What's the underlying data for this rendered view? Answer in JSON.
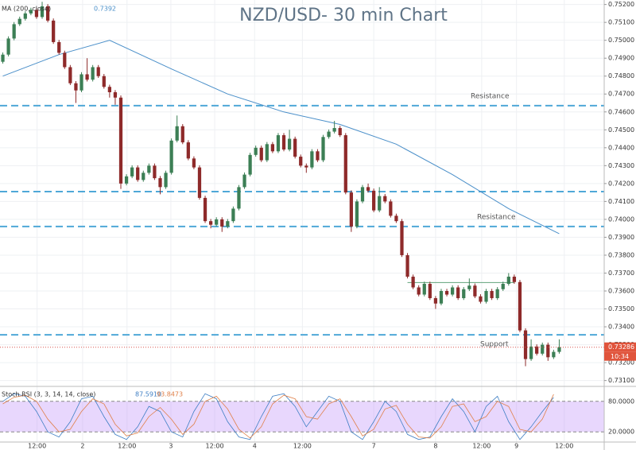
{
  "chart_data": {
    "type": "candlestick",
    "title": "NZD/USD- 30 min Chart",
    "up_color": "#3c7f55",
    "down_color": "#8e2a2a",
    "xlim": [
      -0.5,
      107
    ],
    "xticks": [
      {
        "value": 6.1,
        "label": "12:00"
      },
      {
        "value": 14.2,
        "label": "2"
      },
      {
        "value": 22.1,
        "label": "12:00"
      },
      {
        "value": 29.9,
        "label": "3"
      },
      {
        "value": 37.7,
        "label": "12:00"
      },
      {
        "value": 44.8,
        "label": "4"
      },
      {
        "value": 53.3,
        "label": "12:00"
      },
      {
        "value": 66.0,
        "label": "7"
      },
      {
        "value": 77.0,
        "label": "8"
      },
      {
        "value": 85.2,
        "label": "12:00"
      },
      {
        "value": 91.4,
        "label": "9"
      },
      {
        "value": 99.9,
        "label": "12:00"
      }
    ],
    "ylim": [
      0.73085,
      0.75225
    ],
    "yticks": [
      {
        "value": 0.731,
        "label": "0.73100"
      },
      {
        "value": 0.732,
        "label": "0.73200"
      },
      {
        "value": 0.733,
        "label": "0.73300"
      },
      {
        "value": 0.734,
        "label": "0.73400"
      },
      {
        "value": 0.735,
        "label": "0.73500"
      },
      {
        "value": 0.736,
        "label": "0.73600"
      },
      {
        "value": 0.737,
        "label": "0.73700"
      },
      {
        "value": 0.738,
        "label": "0.73800"
      },
      {
        "value": 0.739,
        "label": "0.73900"
      },
      {
        "value": 0.74,
        "label": "0.74000"
      },
      {
        "value": 0.741,
        "label": "0.74100"
      },
      {
        "value": 0.742,
        "label": "0.74200"
      },
      {
        "value": 0.743,
        "label": "0.74300"
      },
      {
        "value": 0.744,
        "label": "0.74400"
      },
      {
        "value": 0.745,
        "label": "0.74500"
      },
      {
        "value": 0.746,
        "label": "0.74600"
      },
      {
        "value": 0.747,
        "label": "0.74700"
      },
      {
        "value": 0.748,
        "label": "0.74800"
      },
      {
        "value": 0.749,
        "label": "0.74900"
      },
      {
        "value": 0.75,
        "label": "0.75000"
      },
      {
        "value": 0.751,
        "label": "0.75100"
      },
      {
        "value": 0.752,
        "label": "0.75200"
      }
    ],
    "open": [
      0.7488,
      0.7492,
      0.7501,
      0.7509,
      0.7512,
      0.7515,
      0.7517,
      0.7513,
      0.7519,
      0.7511,
      0.7499,
      0.7493,
      0.7485,
      0.7476,
      0.7472,
      0.7481,
      0.7478,
      0.7485,
      0.748,
      0.7474,
      0.7471,
      0.7468,
      0.742,
      0.7424,
      0.7429,
      0.7422,
      0.7426,
      0.743,
      0.7423,
      0.7418,
      0.7426,
      0.7444,
      0.7452,
      0.7443,
      0.7434,
      0.7429,
      0.7412,
      0.7399,
      0.7397,
      0.74,
      0.7396,
      0.7399,
      0.7406,
      0.7418,
      0.7425,
      0.7436,
      0.744,
      0.7433,
      0.7442,
      0.7438,
      0.7447,
      0.7439,
      0.7445,
      0.7435,
      0.743,
      0.7429,
      0.7438,
      0.7433,
      0.7446,
      0.7449,
      0.7451,
      0.7447,
      0.7415,
      0.7396,
      0.741,
      0.7418,
      0.7416,
      0.7405,
      0.7413,
      0.741,
      0.7402,
      0.7399,
      0.738,
      0.7368,
      0.7362,
      0.7358,
      0.7364,
      0.7356,
      0.7353,
      0.736,
      0.7358,
      0.7362,
      0.7356,
      0.7361,
      0.7363,
      0.7357,
      0.7354,
      0.736,
      0.7356,
      0.7361,
      0.7364,
      0.7368,
      0.7365,
      0.7338,
      0.7322,
      0.7329,
      0.7325,
      0.733,
      0.7323,
      0.7326
    ],
    "high": [
      0.74932,
      0.75022,
      0.75102,
      0.75132,
      0.75162,
      0.75182,
      0.75182,
      0.75215,
      0.75202,
      0.75122,
      0.75002,
      0.74942,
      0.74862,
      0.74772,
      0.74822,
      0.749,
      0.74862,
      0.74862,
      0.74812,
      0.74752,
      0.74722,
      0.74692,
      0.74252,
      0.74302,
      0.74302,
      0.74272,
      0.74312,
      0.74312,
      0.74242,
      0.74272,
      0.74452,
      0.7458,
      0.74532,
      0.74442,
      0.74352,
      0.74302,
      0.74132,
      0.74002,
      0.74012,
      0.74012,
      0.74002,
      0.74072,
      0.74192,
      0.74262,
      0.74372,
      0.74412,
      0.74412,
      0.74432,
      0.74432,
      0.74482,
      0.74482,
      0.745,
      0.74462,
      0.74362,
      0.74312,
      0.74392,
      0.74392,
      0.74472,
      0.74502,
      0.7455,
      0.74522,
      0.74482,
      0.74162,
      0.74112,
      0.74192,
      0.742,
      0.74172,
      0.7418,
      0.74142,
      0.74112,
      0.74032,
      0.74002,
      0.73812,
      0.73692,
      0.73632,
      0.73652,
      0.73652,
      0.73572,
      0.73612,
      0.73612,
      0.73632,
      0.73632,
      0.73622,
      0.7367,
      0.73642,
      0.73582,
      0.73612,
      0.73612,
      0.73622,
      0.73652,
      0.737,
      0.73692,
      0.73662,
      0.73392,
      0.7333,
      0.73302,
      0.73312,
      0.73312,
      0.73272,
      0.7333
    ],
    "low": [
      0.7487,
      0.7491,
      0.75,
      0.7508,
      0.7511,
      0.7514,
      0.7512,
      0.7512,
      0.751,
      0.7498,
      0.7492,
      0.7484,
      0.7475,
      0.7465,
      0.7471,
      0.7477,
      0.7477,
      0.7479,
      0.7473,
      0.7468,
      0.7464,
      0.7417,
      0.7419,
      0.7423,
      0.7421,
      0.7421,
      0.7425,
      0.7422,
      0.7414,
      0.7417,
      0.7425,
      0.7443,
      0.7442,
      0.7433,
      0.7428,
      0.7411,
      0.7398,
      0.7395,
      0.7396,
      0.7393,
      0.7395,
      0.7398,
      0.7405,
      0.7417,
      0.7424,
      0.7435,
      0.7432,
      0.7432,
      0.7437,
      0.7437,
      0.7438,
      0.7438,
      0.7434,
      0.7429,
      0.7426,
      0.7428,
      0.7432,
      0.7432,
      0.7445,
      0.7448,
      0.7446,
      0.7414,
      0.7393,
      0.7395,
      0.7409,
      0.7415,
      0.7404,
      0.7404,
      0.7409,
      0.7401,
      0.7398,
      0.7379,
      0.7367,
      0.7361,
      0.7357,
      0.7357,
      0.7355,
      0.735,
      0.7352,
      0.7357,
      0.7357,
      0.7355,
      0.7355,
      0.736,
      0.7356,
      0.7353,
      0.7353,
      0.7355,
      0.7355,
      0.736,
      0.7363,
      0.7364,
      0.7337,
      0.7318,
      0.7321,
      0.7324,
      0.7324,
      0.7321,
      0.7322,
      0.7325
    ],
    "close": [
      0.7492,
      0.7501,
      0.7509,
      0.7512,
      0.7515,
      0.7517,
      0.7513,
      0.7519,
      0.7511,
      0.7499,
      0.7493,
      0.7485,
      0.7476,
      0.7472,
      0.7481,
      0.7478,
      0.7485,
      0.748,
      0.7474,
      0.7471,
      0.7468,
      0.742,
      0.7424,
      0.7429,
      0.7422,
      0.7426,
      0.743,
      0.7423,
      0.7418,
      0.7426,
      0.7444,
      0.7452,
      0.7443,
      0.7434,
      0.7429,
      0.7412,
      0.7399,
      0.7397,
      0.74,
      0.7396,
      0.7399,
      0.7406,
      0.7418,
      0.7425,
      0.7436,
      0.744,
      0.7433,
      0.7442,
      0.7438,
      0.7447,
      0.7439,
      0.7445,
      0.7435,
      0.743,
      0.7429,
      0.7438,
      0.7433,
      0.7446,
      0.7449,
      0.7451,
      0.7447,
      0.7415,
      0.7396,
      0.741,
      0.7418,
      0.7416,
      0.7405,
      0.7413,
      0.741,
      0.7402,
      0.7399,
      0.738,
      0.7368,
      0.7362,
      0.7358,
      0.7364,
      0.7356,
      0.7353,
      0.736,
      0.7358,
      0.7362,
      0.7356,
      0.7361,
      0.7363,
      0.7357,
      0.7354,
      0.736,
      0.7356,
      0.7361,
      0.7364,
      0.7368,
      0.7365,
      0.7338,
      0.7322,
      0.7329,
      0.7325,
      0.733,
      0.7323,
      0.7326,
      0.73286
    ],
    "countdown": "10:34",
    "ma": {
      "name": "MA (200, close)",
      "color": "#4a8fc9",
      "x": [
        0,
        10,
        19,
        30,
        40,
        50,
        60,
        70,
        80,
        90,
        99
      ],
      "values": [
        0.748,
        0.7492,
        0.75,
        0.7484,
        0.747,
        0.746,
        0.7453,
        0.7442,
        0.7425,
        0.7406,
        0.7392
      ]
    },
    "levels": [
      {
        "value": 0.74635,
        "label": "Resistance"
      },
      {
        "value": 0.74155
      },
      {
        "value": 0.7396,
        "label": "Resistance"
      },
      {
        "value": 0.73355,
        "label": "Support"
      }
    ],
    "level_color": "#4fa8d8",
    "range_line": {
      "value": 0.73647,
      "x": [
        72,
        91
      ],
      "color": "#5fa37a"
    },
    "stoch": {
      "name": "Stoch RSI (3, 3, 14, 14, close)",
      "ylim": [
        0,
        100
      ],
      "yticks": [
        {
          "value": 80,
          "label": "80.0000"
        },
        {
          "value": 20,
          "label": "20.0000"
        }
      ],
      "x": [
        0,
        2,
        4,
        6,
        8,
        10,
        12,
        14,
        16,
        18,
        20,
        22,
        24,
        26,
        28,
        30,
        32,
        34,
        36,
        38,
        40,
        42,
        44,
        46,
        48,
        50,
        52,
        54,
        56,
        58,
        60,
        62,
        64,
        66,
        68,
        70,
        72,
        74,
        76,
        78,
        80,
        82,
        84,
        86,
        88,
        90,
        92,
        94,
        96,
        98
      ],
      "series": [
        {
          "name": "K",
          "color": "#3f7fc4",
          "last_label": "87.5910",
          "values": [
            80,
            95,
            90,
            60,
            20,
            10,
            40,
            85,
            90,
            50,
            15,
            5,
            30,
            70,
            60,
            20,
            10,
            60,
            95,
            85,
            40,
            10,
            5,
            50,
            90,
            95,
            70,
            30,
            60,
            90,
            80,
            20,
            5,
            40,
            80,
            60,
            15,
            5,
            10,
            50,
            85,
            60,
            20,
            70,
            90,
            40,
            5,
            30,
            60,
            87.591
          ]
        },
        {
          "name": "D",
          "color": "#e0804a",
          "last_label": "93.8473",
          "values": [
            75,
            88,
            92,
            80,
            45,
            20,
            25,
            60,
            85,
            75,
            35,
            12,
            18,
            50,
            68,
            45,
            15,
            35,
            80,
            90,
            65,
            25,
            8,
            30,
            75,
            92,
            85,
            50,
            45,
            75,
            85,
            50,
            12,
            25,
            65,
            72,
            35,
            10,
            8,
            30,
            70,
            75,
            40,
            50,
            80,
            70,
            25,
            20,
            45,
            93.8473
          ]
        }
      ]
    }
  }
}
